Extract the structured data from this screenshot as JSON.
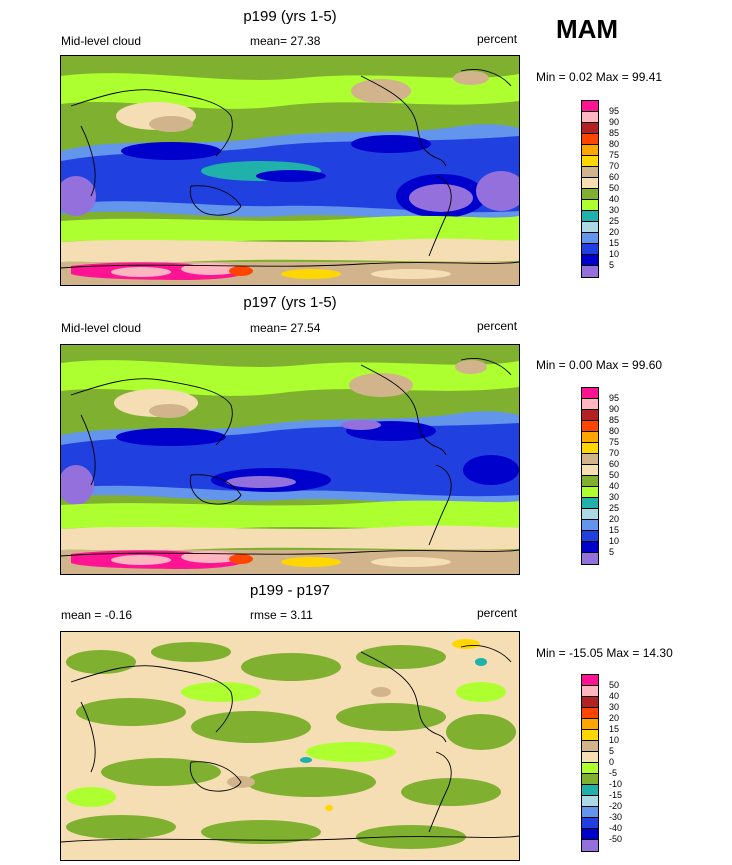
{
  "season": "MAM",
  "panels": [
    {
      "title": "p199 (yrs 1-5)",
      "left": "Mid-level cloud",
      "center": "mean=  27.38",
      "right": "percent",
      "minmax": "Min =   0.02 Max =  99.41",
      "levels": [
        "95",
        "90",
        "85",
        "80",
        "75",
        "70",
        "60",
        "50",
        "40",
        "30",
        "25",
        "20",
        "15",
        "10",
        "5"
      ]
    },
    {
      "title": "p197 (yrs 1-5)",
      "left": "Mid-level cloud",
      "center": "mean=  27.54",
      "right": "percent",
      "minmax": "Min =   0.00 Max =  99.60",
      "levels": [
        "95",
        "90",
        "85",
        "80",
        "75",
        "70",
        "60",
        "50",
        "40",
        "30",
        "25",
        "20",
        "15",
        "10",
        "5"
      ]
    },
    {
      "title": "p199 - p197",
      "left": "mean =  -0.16",
      "center": "rmse =    3.11",
      "right": "percent",
      "minmax": "Min = -15.05 Max =  14.30",
      "levels": [
        "50",
        "40",
        "30",
        "20",
        "15",
        "10",
        "5",
        "0",
        "-5",
        "-10",
        "-15",
        "-20",
        "-30",
        "-40",
        "-50"
      ]
    }
  ],
  "colors": {
    "scale": [
      "#ff1493",
      "#ffb6c1",
      "#b22222",
      "#ff4500",
      "#ffa500",
      "#ffd700",
      "#d2b48c",
      "#f5deb3",
      "#7fb030",
      "#adff2f",
      "#20b2aa",
      "#add8e6",
      "#6495ed",
      "#2040e0",
      "#0000cd",
      "#9370db"
    ],
    "diff_scale": [
      "#ff1493",
      "#ffb6c1",
      "#b22222",
      "#ff4500",
      "#ffa500",
      "#ffd700",
      "#d2b48c",
      "#f5deb3",
      "#adff2f",
      "#7fb030",
      "#20b2aa",
      "#add8e6",
      "#6495ed",
      "#2040e0",
      "#0000cd",
      "#9370db"
    ]
  }
}
